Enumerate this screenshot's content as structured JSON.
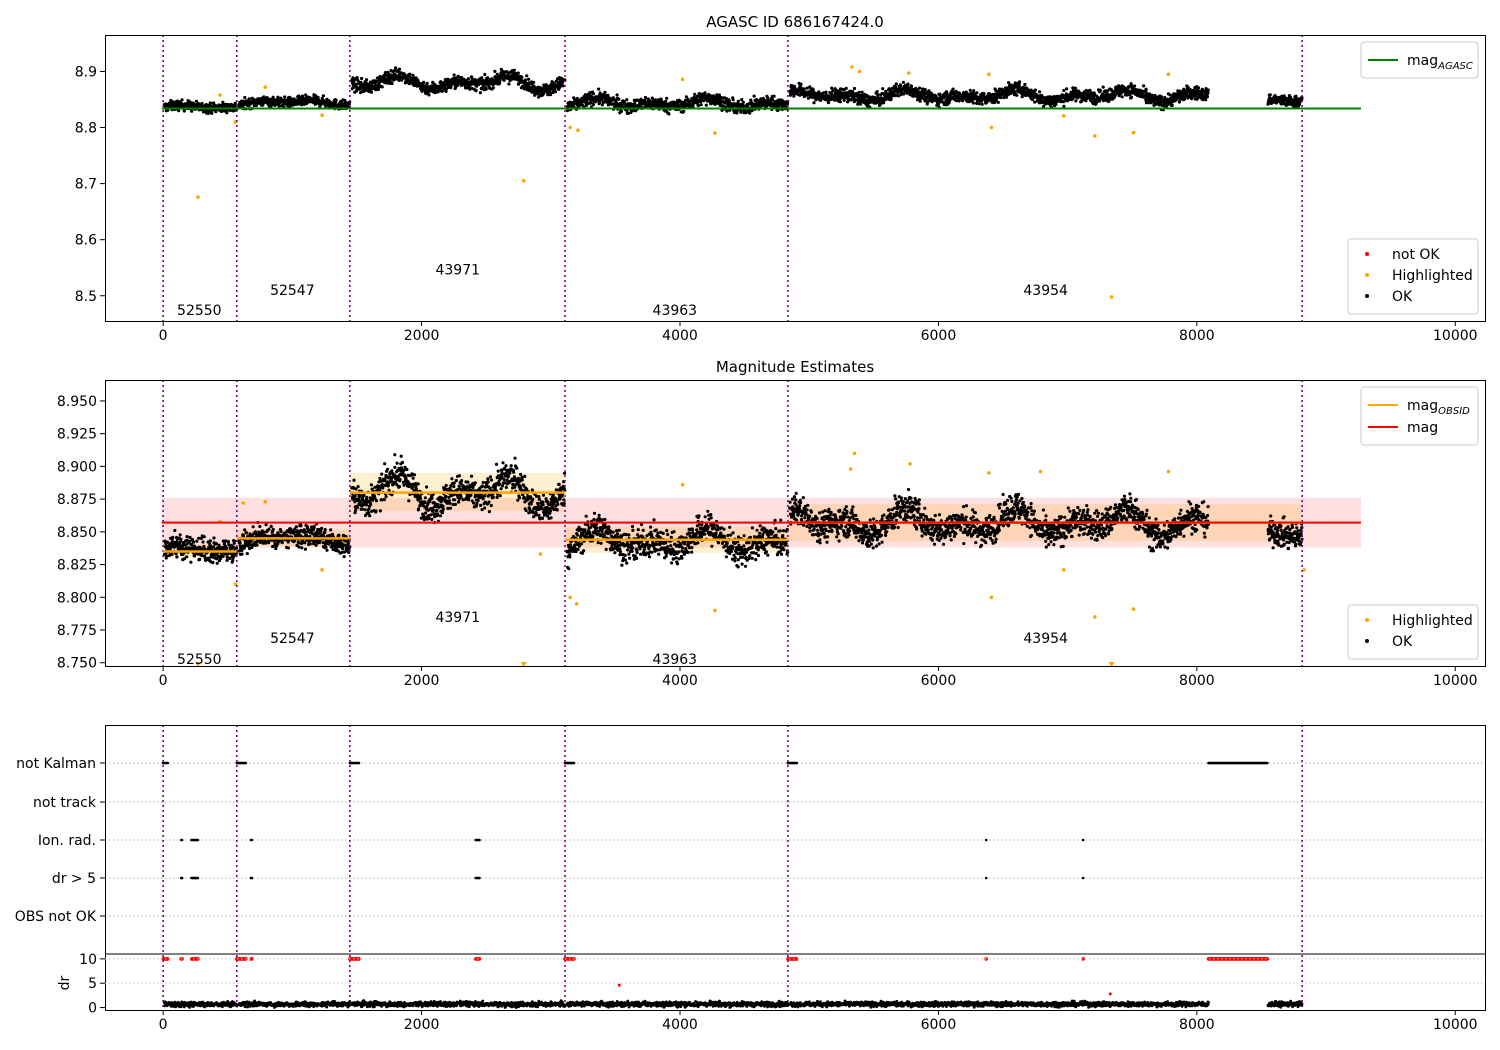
{
  "chart_data": [
    {
      "type": "scatter",
      "title": "AGASC ID 686167424.0",
      "xlim": [
        -450,
        10230
      ],
      "ylim": [
        8.455,
        8.965
      ],
      "xticks": [
        0,
        2000,
        4000,
        6000,
        8000,
        10000
      ],
      "yticks": [
        8.5,
        8.6,
        8.7,
        8.8,
        8.9
      ],
      "obsid_boundaries": [
        0,
        570,
        1445,
        3110,
        4835,
        8815
      ],
      "obsid_labels": [
        {
          "text": "52550",
          "x": 280,
          "y": 8.475
        },
        {
          "text": "52547",
          "x": 1000,
          "y": 8.51
        },
        {
          "text": "43971",
          "x": 2280,
          "y": 8.547
        },
        {
          "text": "43963",
          "x": 3960,
          "y": 8.475
        },
        {
          "text": "43954",
          "x": 6830,
          "y": 8.51
        }
      ],
      "segments": [
        {
          "x0": 10,
          "x1": 570,
          "mean": 8.836,
          "spread": 0.006,
          "wave": 0.004
        },
        {
          "x0": 585,
          "x1": 1445,
          "mean": 8.845,
          "spread": 0.006,
          "wave": 0.005
        },
        {
          "x0": 1460,
          "x1": 3110,
          "mean": 8.88,
          "spread": 0.008,
          "wave": 0.014
        },
        {
          "x0": 3125,
          "x1": 4835,
          "mean": 8.843,
          "spread": 0.008,
          "wave": 0.01
        },
        {
          "x0": 4850,
          "x1": 8090,
          "mean": 8.857,
          "spread": 0.008,
          "wave": 0.012
        },
        {
          "x0": 8550,
          "x1": 8815,
          "mean": 8.85,
          "spread": 0.007,
          "wave": 0.008
        }
      ],
      "series": [
        {
          "name": "mag_AGASC",
          "type": "hline",
          "y": 8.834,
          "x": [
            -10,
            9270
          ],
          "color": "#008000"
        }
      ],
      "highlighted_points": [
        [
          270,
          8.676
        ],
        [
          440,
          8.858
        ],
        [
          560,
          8.81
        ],
        [
          790,
          8.872
        ],
        [
          1230,
          8.822
        ],
        [
          2790,
          8.705
        ],
        [
          3150,
          8.8
        ],
        [
          3210,
          8.795
        ],
        [
          4020,
          8.886
        ],
        [
          4270,
          8.79
        ],
        [
          5330,
          8.908
        ],
        [
          5390,
          8.9
        ],
        [
          5770,
          8.897
        ],
        [
          6390,
          8.895
        ],
        [
          6410,
          8.8
        ],
        [
          6970,
          8.821
        ],
        [
          7210,
          8.785
        ],
        [
          7340,
          8.498
        ],
        [
          7510,
          8.791
        ],
        [
          7780,
          8.895
        ]
      ],
      "legend_series": [
        {
          "label": "mag",
          "sub": "AGASC",
          "color": "#008000"
        }
      ],
      "legend_points": [
        {
          "label": "not OK",
          "color": "#ff0000"
        },
        {
          "label": "Highlighted",
          "color": "#ffa500"
        },
        {
          "label": "OK",
          "color": "#000000"
        }
      ]
    },
    {
      "type": "scatter",
      "title": "Magnitude Estimates",
      "xlim": [
        -450,
        10230
      ],
      "ylim": [
        8.7475,
        8.966
      ],
      "xticks": [
        0,
        2000,
        4000,
        6000,
        8000,
        10000
      ],
      "yticks": [
        8.75,
        8.775,
        8.8,
        8.825,
        8.85,
        8.875,
        8.9,
        8.925,
        8.95
      ],
      "obsid_boundaries": [
        0,
        570,
        1445,
        3110,
        4835,
        8815
      ],
      "obsid_labels": [
        {
          "text": "52550",
          "x": 280,
          "y": 8.753
        },
        {
          "text": "52547",
          "x": 1000,
          "y": 8.769
        },
        {
          "text": "43971",
          "x": 2280,
          "y": 8.785
        },
        {
          "text": "43963",
          "x": 3960,
          "y": 8.753
        },
        {
          "text": "43954",
          "x": 6830,
          "y": 8.769
        }
      ],
      "segments": [
        {
          "x0": 10,
          "x1": 570,
          "mean": 8.836,
          "spread": 0.006,
          "wave": 0.004
        },
        {
          "x0": 585,
          "x1": 1445,
          "mean": 8.845,
          "spread": 0.006,
          "wave": 0.005
        },
        {
          "x0": 1460,
          "x1": 3110,
          "mean": 8.88,
          "spread": 0.008,
          "wave": 0.014
        },
        {
          "x0": 3125,
          "x1": 4835,
          "mean": 8.843,
          "spread": 0.008,
          "wave": 0.01
        },
        {
          "x0": 4850,
          "x1": 8090,
          "mean": 8.857,
          "spread": 0.008,
          "wave": 0.012
        },
        {
          "x0": 8550,
          "x1": 8815,
          "mean": 8.85,
          "spread": 0.007,
          "wave": 0.008
        }
      ],
      "mag_obsid": [
        {
          "x0": 0,
          "x1": 570,
          "y": 8.835,
          "lo": 8.83,
          "hi": 8.841
        },
        {
          "x0": 570,
          "x1": 1445,
          "y": 8.845,
          "lo": 8.839,
          "hi": 8.852
        },
        {
          "x0": 1445,
          "x1": 3110,
          "y": 8.88,
          "lo": 8.866,
          "hi": 8.895
        },
        {
          "x0": 3110,
          "x1": 4835,
          "y": 8.844,
          "lo": 8.834,
          "hi": 8.854
        },
        {
          "x0": 4835,
          "x1": 8815,
          "y": 8.857,
          "lo": 8.843,
          "hi": 8.871
        }
      ],
      "mag": {
        "y": 8.857,
        "band": [
          8.838,
          8.876
        ],
        "x": [
          -10,
          9270
        ]
      },
      "highlighted_points": [
        [
          270,
          8.749
        ],
        [
          440,
          8.858
        ],
        [
          560,
          8.81
        ],
        [
          620,
          8.872
        ],
        [
          790,
          8.873
        ],
        [
          1230,
          8.821
        ],
        [
          2790,
          8.749
        ],
        [
          2920,
          8.833
        ],
        [
          3150,
          8.8
        ],
        [
          3200,
          8.795
        ],
        [
          4020,
          8.886
        ],
        [
          4270,
          8.79
        ],
        [
          5320,
          8.898
        ],
        [
          5350,
          8.91
        ],
        [
          5780,
          8.902
        ],
        [
          6390,
          8.895
        ],
        [
          6410,
          8.8
        ],
        [
          6790,
          8.896
        ],
        [
          6970,
          8.821
        ],
        [
          7210,
          8.785
        ],
        [
          7340,
          8.749
        ],
        [
          7510,
          8.791
        ],
        [
          7780,
          8.896
        ],
        [
          8830,
          8.821
        ]
      ],
      "legend_series": [
        {
          "label": "mag",
          "sub": "OBSID",
          "color": "#ffa500"
        },
        {
          "label": "mag",
          "sub": "",
          "color": "#ff0000"
        }
      ],
      "legend_points": [
        {
          "label": "Highlighted",
          "color": "#ffa500"
        },
        {
          "label": "OK",
          "color": "#000000"
        }
      ]
    },
    {
      "type": "scatter",
      "xlim": [
        -450,
        10230
      ],
      "yticks_labels": [
        "not Kalman",
        "not track",
        "Ion. rad.",
        "dr > 5",
        "OBS not OK"
      ],
      "obsid_boundaries": [
        0,
        570,
        1445,
        3110,
        4835,
        8815
      ],
      "flags": {
        "not Kalman": [
          [
            0,
            40
          ],
          [
            570,
            640
          ],
          [
            1445,
            1520
          ],
          [
            3110,
            3180
          ],
          [
            4835,
            4905
          ],
          [
            8090,
            8550
          ]
        ],
        "not track": [],
        "Ion. rad.": [
          [
            140,
            150
          ],
          [
            220,
            270
          ],
          [
            680,
            690
          ],
          [
            2420,
            2450
          ],
          [
            6370,
            6375
          ],
          [
            7120,
            7125
          ]
        ],
        "dr > 5": [
          [
            140,
            150
          ],
          [
            220,
            270
          ],
          [
            680,
            690
          ],
          [
            2420,
            2450
          ],
          [
            6370,
            6375
          ],
          [
            7120,
            7125
          ]
        ],
        "OBS not OK": []
      }
    },
    {
      "type": "scatter",
      "ylabel": "dr",
      "xlim": [
        -450,
        10230
      ],
      "ylim": [
        -0.5,
        11
      ],
      "xticks": [
        0,
        2000,
        4000,
        6000,
        8000,
        10000
      ],
      "yticks": [
        0,
        5,
        10
      ],
      "obsid_boundaries": [
        0,
        570,
        1445,
        3110,
        4835,
        8815
      ],
      "dr_ok_segments": [
        [
          10,
          570
        ],
        [
          585,
          1445
        ],
        [
          1460,
          3110
        ],
        [
          3125,
          4835
        ],
        [
          4850,
          8090
        ],
        [
          8550,
          8815
        ]
      ],
      "dr_high": [
        [
          0,
          40
        ],
        [
          140,
          150
        ],
        [
          220,
          270
        ],
        [
          570,
          640
        ],
        [
          680,
          690
        ],
        [
          1445,
          1520
        ],
        [
          2420,
          2450
        ],
        [
          3110,
          3180
        ],
        [
          4835,
          4905
        ],
        [
          6370,
          6375
        ],
        [
          7120,
          7125
        ],
        [
          8090,
          8550
        ]
      ],
      "dr_outliers": [
        [
          3530,
          4.6
        ],
        [
          7330,
          2.8
        ]
      ]
    }
  ]
}
